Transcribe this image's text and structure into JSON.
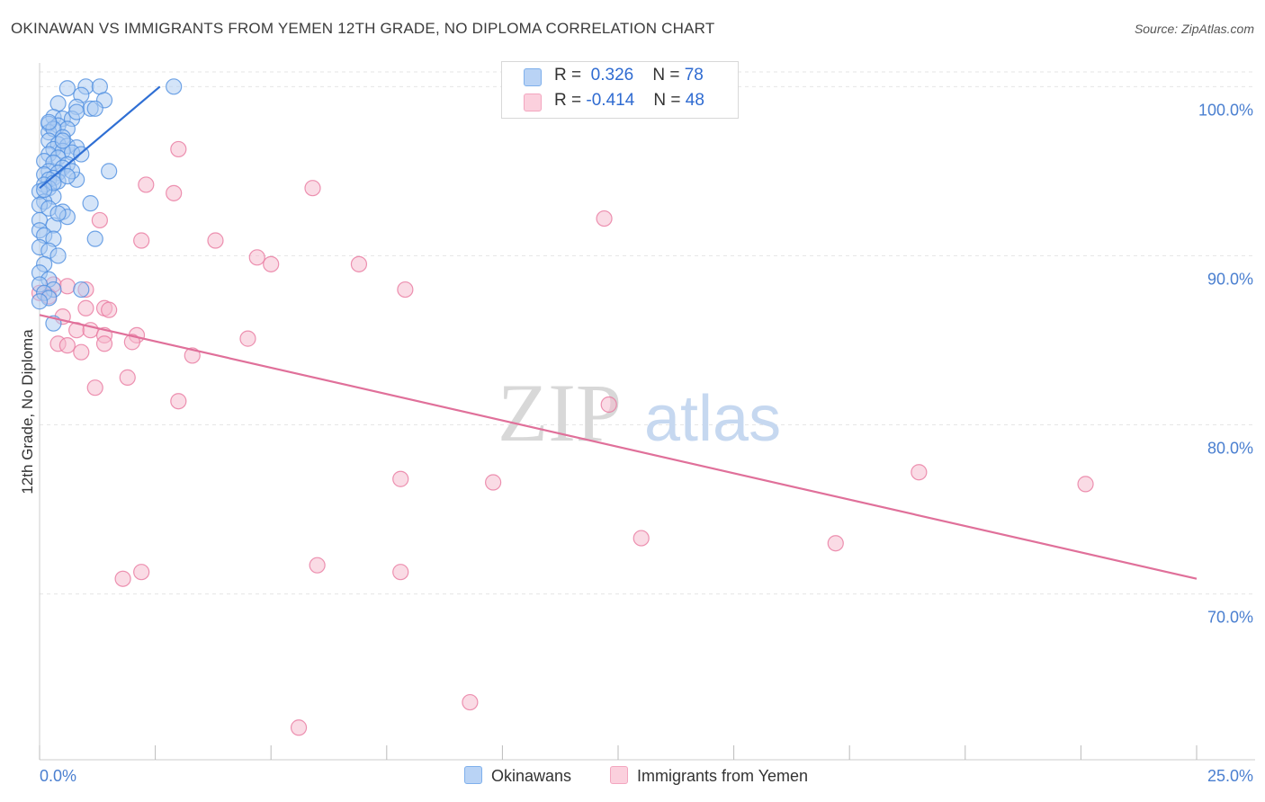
{
  "title": "OKINAWAN VS IMMIGRANTS FROM YEMEN 12TH GRADE, NO DIPLOMA CORRELATION CHART",
  "source": "Source: ZipAtlas.com",
  "watermark": {
    "zip": "ZIP",
    "atlas": "atlas"
  },
  "legend": {
    "okinawans": {
      "r_label": "R =",
      "r_value": "0.326",
      "n_label": "N =",
      "n_value": "78",
      "color": "#7fb0ec"
    },
    "yemen": {
      "r_label": "R =",
      "r_value": "-0.414",
      "n_label": "N =",
      "n_value": "48",
      "color": "#f3a6bf"
    }
  },
  "bottom_legend": {
    "okinawans": "Okinawans",
    "yemen": "Immigrants from Yemen"
  },
  "chart_data": {
    "type": "scatter",
    "title": "OKINAWAN VS IMMIGRANTS FROM YEMEN 12TH GRADE, NO DIPLOMA CORRELATION CHART",
    "xlabel": "",
    "ylabel": "12th Grade, No Diploma",
    "xlim": [
      0,
      25
    ],
    "ylim": [
      60.2,
      101.4
    ],
    "x_tick_labels": [
      "0.0%",
      "25.0%"
    ],
    "y_ticks": [
      70,
      80,
      90,
      100
    ],
    "y_tick_labels": [
      "70.0%",
      "80.0%",
      "90.0%",
      "100.0%"
    ],
    "grid": true,
    "series": [
      {
        "name": "Okinawans",
        "color": "#4f8fe0",
        "fill": "#a9c9f2",
        "trend": {
          "x": [
            0.0,
            2.6
          ],
          "y": [
            94.0,
            100.0
          ]
        },
        "points": [
          [
            1.0,
            100.0
          ],
          [
            1.3,
            100.0
          ],
          [
            2.9,
            100.0
          ],
          [
            0.6,
            99.9
          ],
          [
            0.9,
            99.5
          ],
          [
            1.4,
            99.2
          ],
          [
            0.4,
            99.0
          ],
          [
            0.8,
            98.8
          ],
          [
            1.1,
            98.7
          ],
          [
            1.2,
            98.7
          ],
          [
            0.3,
            98.2
          ],
          [
            0.5,
            98.1
          ],
          [
            0.7,
            98.1
          ],
          [
            0.2,
            97.8
          ],
          [
            0.4,
            97.7
          ],
          [
            0.6,
            97.5
          ],
          [
            0.2,
            97.3
          ],
          [
            0.3,
            97.5
          ],
          [
            0.5,
            97.0
          ],
          [
            0.2,
            96.8
          ],
          [
            0.4,
            96.6
          ],
          [
            0.6,
            96.5
          ],
          [
            0.8,
            96.4
          ],
          [
            0.3,
            96.3
          ],
          [
            0.5,
            96.2
          ],
          [
            0.2,
            96.0
          ],
          [
            0.7,
            96.1
          ],
          [
            0.4,
            95.8
          ],
          [
            0.1,
            95.6
          ],
          [
            0.3,
            95.5
          ],
          [
            0.6,
            95.4
          ],
          [
            0.5,
            95.2
          ],
          [
            0.2,
            95.0
          ],
          [
            0.4,
            94.9
          ],
          [
            0.1,
            94.8
          ],
          [
            0.3,
            94.6
          ],
          [
            0.2,
            94.5
          ],
          [
            0.8,
            94.5
          ],
          [
            0.4,
            94.4
          ],
          [
            0.1,
            94.2
          ],
          [
            0.2,
            94.0
          ],
          [
            0.0,
            93.8
          ],
          [
            0.3,
            93.5
          ],
          [
            0.1,
            93.2
          ],
          [
            0.0,
            93.0
          ],
          [
            0.2,
            92.8
          ],
          [
            0.5,
            92.6
          ],
          [
            0.6,
            92.3
          ],
          [
            0.0,
            92.1
          ],
          [
            0.3,
            91.8
          ],
          [
            0.0,
            91.5
          ],
          [
            0.1,
            91.2
          ],
          [
            0.3,
            91.0
          ],
          [
            1.2,
            91.0
          ],
          [
            0.0,
            90.5
          ],
          [
            0.2,
            90.3
          ],
          [
            0.4,
            90.0
          ],
          [
            0.1,
            89.5
          ],
          [
            0.0,
            89.0
          ],
          [
            0.2,
            88.6
          ],
          [
            0.0,
            88.3
          ],
          [
            0.3,
            88.0
          ],
          [
            0.9,
            88.0
          ],
          [
            0.1,
            87.8
          ],
          [
            0.2,
            87.5
          ],
          [
            0.0,
            87.3
          ],
          [
            0.3,
            86.0
          ],
          [
            1.5,
            95.0
          ],
          [
            1.1,
            93.1
          ],
          [
            0.9,
            96.0
          ],
          [
            0.2,
            97.9
          ],
          [
            0.5,
            96.8
          ],
          [
            0.7,
            95.0
          ],
          [
            0.3,
            94.3
          ],
          [
            0.1,
            93.9
          ],
          [
            0.4,
            92.5
          ],
          [
            0.6,
            94.7
          ],
          [
            0.8,
            98.5
          ]
        ]
      },
      {
        "name": "Immigrants from Yemen",
        "color": "#e8789f",
        "fill": "#f5b8cb",
        "trend": {
          "x": [
            0.0,
            25.0
          ],
          "y": [
            86.5,
            70.9
          ]
        },
        "points": [
          [
            3.0,
            96.3
          ],
          [
            2.3,
            94.2
          ],
          [
            2.9,
            93.7
          ],
          [
            5.9,
            94.0
          ],
          [
            12.2,
            92.2
          ],
          [
            1.3,
            92.1
          ],
          [
            2.2,
            90.9
          ],
          [
            3.8,
            90.9
          ],
          [
            4.7,
            89.9
          ],
          [
            5.0,
            89.5
          ],
          [
            6.9,
            89.5
          ],
          [
            7.9,
            88.0
          ],
          [
            0.3,
            88.3
          ],
          [
            0.6,
            88.2
          ],
          [
            0.0,
            87.8
          ],
          [
            0.2,
            87.6
          ],
          [
            1.0,
            86.9
          ],
          [
            1.4,
            86.9
          ],
          [
            1.5,
            86.8
          ],
          [
            0.5,
            86.4
          ],
          [
            0.8,
            85.6
          ],
          [
            1.1,
            85.6
          ],
          [
            1.4,
            85.3
          ],
          [
            2.1,
            85.3
          ],
          [
            4.5,
            85.1
          ],
          [
            1.4,
            84.8
          ],
          [
            0.4,
            84.8
          ],
          [
            0.6,
            84.7
          ],
          [
            2.0,
            84.9
          ],
          [
            3.3,
            84.1
          ],
          [
            0.9,
            84.3
          ],
          [
            1.9,
            82.8
          ],
          [
            1.2,
            82.2
          ],
          [
            3.0,
            81.4
          ],
          [
            12.3,
            81.2
          ],
          [
            7.8,
            76.8
          ],
          [
            9.8,
            76.6
          ],
          [
            19.0,
            77.2
          ],
          [
            22.6,
            76.5
          ],
          [
            13.0,
            73.3
          ],
          [
            17.2,
            73.0
          ],
          [
            2.2,
            71.3
          ],
          [
            1.8,
            70.9
          ],
          [
            6.0,
            71.7
          ],
          [
            7.8,
            71.3
          ],
          [
            9.3,
            63.6
          ],
          [
            5.6,
            62.1
          ],
          [
            1.0,
            88.0
          ]
        ]
      }
    ]
  }
}
